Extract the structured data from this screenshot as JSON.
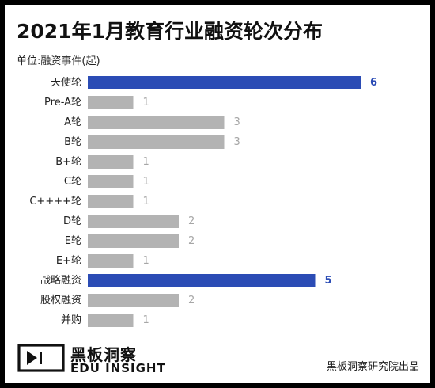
{
  "title": "2021年1月教育行业融资轮次分布",
  "unit_label": "单位:融资事件(起)",
  "brand": {
    "name_cn": "黑板洞察",
    "name_en": "EDU INSIGHT",
    "source": "黑板洞察研究院出品"
  },
  "colors": {
    "highlight": "#2B4CB5",
    "normal": "#B3B3B3",
    "highlight_label": "#2B4CB5",
    "normal_label": "#A6A6A6"
  },
  "chart_data": {
    "type": "bar",
    "orientation": "horizontal",
    "categories": [
      "天使轮",
      "Pre-A轮",
      "A轮",
      "B轮",
      "B+轮",
      "C轮",
      "C++++轮",
      "D轮",
      "E轮",
      "E+轮",
      "战略融资",
      "股权融资",
      "并购"
    ],
    "values": [
      6,
      1,
      3,
      3,
      1,
      1,
      1,
      2,
      2,
      1,
      5,
      2,
      1
    ],
    "highlighted": [
      "天使轮",
      "战略融资"
    ],
    "xlim": [
      0,
      6
    ],
    "grid": false,
    "legend": "none"
  }
}
